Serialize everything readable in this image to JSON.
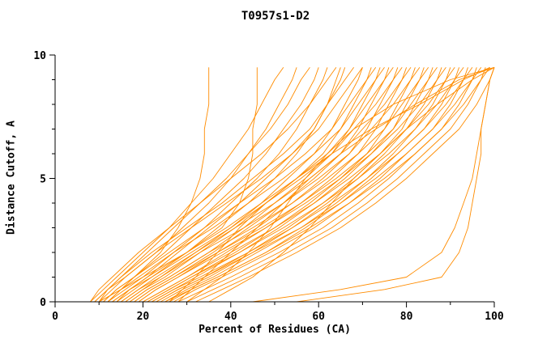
{
  "figure": {
    "title": "T0957s1-D2"
  },
  "chart_data": {
    "type": "line",
    "title": "T0957s1-D2",
    "xlabel": "Percent of Residues (CA)",
    "ylabel": "Distance Cutoff, A",
    "xlim": [
      0,
      100
    ],
    "ylim": [
      0,
      10
    ],
    "x_ticks": [
      0,
      20,
      40,
      60,
      80,
      100
    ],
    "x_minor_ticks": [
      10,
      30,
      50,
      70,
      90
    ],
    "y_ticks": [
      0,
      5,
      10
    ],
    "y_minor_ticks": [
      1,
      2,
      3,
      4,
      6,
      7,
      8,
      9
    ],
    "grid": false,
    "legend": "none",
    "line_color": "#ff8c00",
    "axis_color": "#000000",
    "note": "Each series is one model: x = percent of CA residues under distance cutoff y (A). Values estimated from plot.",
    "cutoffs": [
      0,
      0.5,
      1,
      2,
      3,
      4,
      5,
      6,
      7,
      8,
      9,
      9.5
    ],
    "series": [
      {
        "values": [
          12,
          15,
          18,
          24,
          28,
          31,
          33,
          34,
          34,
          35,
          35,
          35
        ]
      },
      {
        "values": [
          10,
          15,
          20,
          30,
          38,
          42,
          44,
          45,
          45,
          46,
          46,
          46
        ]
      },
      {
        "values": [
          8,
          11,
          14,
          20,
          26,
          31,
          36,
          40,
          44,
          47,
          50,
          52
        ]
      },
      {
        "values": [
          9,
          12,
          16,
          23,
          29,
          35,
          40,
          44,
          48,
          51,
          54,
          55
        ]
      },
      {
        "values": [
          10,
          12,
          15,
          21,
          27,
          33,
          39,
          44,
          49,
          53,
          56,
          58
        ]
      },
      {
        "values": [
          11,
          14,
          18,
          25,
          31,
          37,
          43,
          48,
          52,
          56,
          59,
          60
        ]
      },
      {
        "values": [
          12,
          16,
          20,
          27,
          34,
          40,
          46,
          51,
          55,
          58,
          61,
          62
        ]
      },
      {
        "values": [
          8,
          10,
          13,
          19,
          26,
          33,
          40,
          47,
          53,
          58,
          62,
          64
        ]
      },
      {
        "values": [
          13,
          17,
          22,
          30,
          37,
          44,
          50,
          55,
          59,
          62,
          64,
          65
        ]
      },
      {
        "values": [
          14,
          17,
          21,
          28,
          35,
          42,
          48,
          54,
          59,
          62,
          65,
          66
        ]
      },
      {
        "values": [
          9,
          12,
          15,
          22,
          30,
          38,
          45,
          52,
          58,
          62,
          66,
          68
        ]
      },
      {
        "values": [
          15,
          19,
          24,
          32,
          40,
          47,
          53,
          59,
          63,
          66,
          69,
          70
        ]
      },
      {
        "values": [
          10,
          13,
          16,
          23,
          31,
          39,
          47,
          54,
          60,
          64,
          68,
          70
        ]
      },
      {
        "values": [
          16,
          20,
          25,
          33,
          41,
          48,
          55,
          61,
          65,
          68,
          71,
          72
        ]
      },
      {
        "values": [
          11,
          14,
          18,
          26,
          34,
          42,
          50,
          57,
          63,
          67,
          71,
          73
        ]
      },
      {
        "values": [
          17,
          21,
          26,
          35,
          43,
          50,
          57,
          63,
          67,
          70,
          73,
          74
        ]
      },
      {
        "values": [
          12,
          15,
          19,
          27,
          36,
          44,
          52,
          59,
          65,
          69,
          73,
          75
        ]
      },
      {
        "values": [
          18,
          22,
          27,
          36,
          44,
          52,
          59,
          65,
          69,
          72,
          75,
          76
        ]
      },
      {
        "values": [
          13,
          17,
          21,
          30,
          39,
          47,
          55,
          62,
          67,
          71,
          75,
          77
        ]
      },
      {
        "values": [
          19,
          23,
          28,
          37,
          46,
          54,
          61,
          67,
          71,
          74,
          77,
          78
        ]
      },
      {
        "values": [
          14,
          18,
          22,
          31,
          40,
          48,
          56,
          63,
          68,
          73,
          77,
          79
        ]
      },
      {
        "values": [
          20,
          25,
          30,
          39,
          48,
          56,
          63,
          69,
          73,
          76,
          79,
          80
        ]
      },
      {
        "values": [
          15,
          19,
          23,
          32,
          41,
          50,
          58,
          65,
          70,
          75,
          79,
          81
        ]
      },
      {
        "values": [
          21,
          26,
          31,
          41,
          50,
          58,
          65,
          71,
          75,
          78,
          81,
          82
        ]
      },
      {
        "values": [
          16,
          20,
          24,
          33,
          43,
          52,
          60,
          67,
          72,
          77,
          81,
          83
        ]
      },
      {
        "values": [
          22,
          27,
          32,
          42,
          51,
          59,
          66,
          72,
          77,
          80,
          83,
          84
        ]
      },
      {
        "values": [
          17,
          21,
          26,
          35,
          45,
          54,
          62,
          69,
          75,
          79,
          83,
          85
        ]
      },
      {
        "values": [
          23,
          28,
          34,
          44,
          53,
          61,
          68,
          74,
          79,
          82,
          85,
          86
        ]
      },
      {
        "values": [
          18,
          22,
          27,
          37,
          47,
          56,
          64,
          71,
          77,
          81,
          85,
          87
        ]
      },
      {
        "values": [
          24,
          29,
          35,
          45,
          54,
          62,
          69,
          75,
          80,
          84,
          87,
          88
        ]
      },
      {
        "values": [
          19,
          23,
          28,
          38,
          48,
          57,
          65,
          72,
          78,
          83,
          87,
          89
        ]
      },
      {
        "values": [
          25,
          30,
          36,
          46,
          56,
          64,
          71,
          77,
          82,
          86,
          89,
          90
        ]
      },
      {
        "values": [
          20,
          25,
          30,
          40,
          50,
          59,
          67,
          74,
          80,
          85,
          89,
          91
        ]
      },
      {
        "values": [
          26,
          31,
          37,
          48,
          57,
          65,
          72,
          78,
          84,
          88,
          91,
          92
        ]
      },
      {
        "values": [
          21,
          26,
          31,
          42,
          52,
          61,
          69,
          76,
          82,
          87,
          91,
          93
        ]
      },
      {
        "values": [
          27,
          32,
          38,
          49,
          59,
          67,
          74,
          80,
          86,
          90,
          93,
          94
        ]
      },
      {
        "values": [
          22,
          27,
          33,
          44,
          54,
          63,
          71,
          78,
          84,
          89,
          93,
          95
        ]
      },
      {
        "values": [
          28,
          34,
          40,
          51,
          61,
          69,
          76,
          82,
          88,
          92,
          95,
          96
        ]
      },
      {
        "values": [
          23,
          28,
          34,
          45,
          56,
          65,
          73,
          80,
          86,
          91,
          95,
          97
        ]
      },
      {
        "values": [
          30,
          36,
          42,
          53,
          63,
          71,
          78,
          84,
          90,
          94,
          97,
          98
        ]
      },
      {
        "values": [
          25,
          31,
          37,
          48,
          58,
          67,
          75,
          82,
          88,
          93,
          97,
          99
        ]
      },
      {
        "values": [
          32,
          38,
          44,
          55,
          65,
          73,
          80,
          86,
          92,
          96,
          99,
          100
        ]
      },
      {
        "values": [
          28,
          31,
          34,
          40,
          46,
          52,
          58,
          65,
          73,
          82,
          92,
          100
        ]
      },
      {
        "values": [
          30,
          34,
          38,
          44,
          49,
          53,
          57,
          62,
          68,
          77,
          90,
          100
        ]
      },
      {
        "values": [
          35,
          40,
          45,
          52,
          58,
          63,
          68,
          74,
          80,
          87,
          95,
          100
        ]
      },
      {
        "values": [
          55,
          75,
          88,
          92,
          94,
          95,
          96,
          97,
          97,
          98,
          99,
          100
        ]
      },
      {
        "values": [
          45,
          65,
          80,
          88,
          91,
          93,
          95,
          96,
          97,
          98,
          99,
          100
        ]
      },
      {
        "values": [
          26,
          29,
          32,
          37,
          42,
          48,
          55,
          63,
          72,
          83,
          93,
          99
        ]
      }
    ]
  }
}
